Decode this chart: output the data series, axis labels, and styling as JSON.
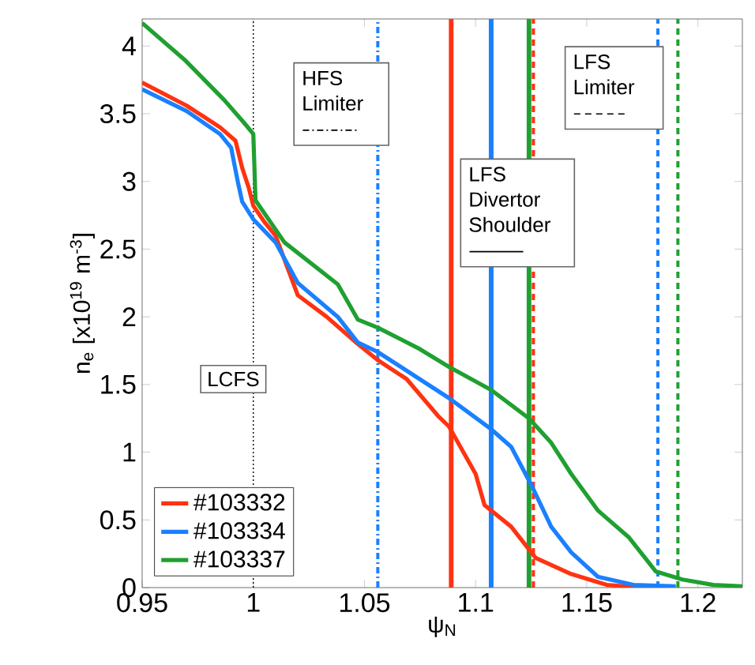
{
  "chart_data": {
    "type": "line",
    "xlabel": "ψ$_{N}$",
    "ylabel": "n$_{e}$ [x10$^{19}$ m$^{-3}$]",
    "xlim": [
      0.95,
      1.22
    ],
    "ylim": [
      0,
      4.2
    ],
    "xticks": [
      0.95,
      1,
      1.05,
      1.1,
      1.15,
      1.2
    ],
    "yticks": [
      0,
      0.5,
      1,
      1.5,
      2,
      2.5,
      3,
      3.5,
      4
    ],
    "legend": "bottom left",
    "series": [
      {
        "name": "#103332",
        "color": "#ff3311",
        "x": [
          0.95,
          0.97,
          0.985,
          0.992,
          0.995,
          0.998,
          1.0,
          1.005,
          1.01,
          1.02,
          1.033,
          1.047,
          1.056,
          1.069,
          1.083,
          1.088,
          1.1,
          1.104,
          1.116,
          1.127,
          1.143,
          1.159,
          1.175,
          1.19
        ],
        "values": [
          3.73,
          3.56,
          3.4,
          3.3,
          3.1,
          2.95,
          2.82,
          2.7,
          2.6,
          2.16,
          2.0,
          1.8,
          1.68,
          1.54,
          1.27,
          1.19,
          0.84,
          0.61,
          0.45,
          0.22,
          0.1,
          0.02,
          0.0,
          0.0
        ]
      },
      {
        "name": "#103334",
        "color": "#1a80ff",
        "x": [
          0.95,
          0.97,
          0.985,
          0.99,
          0.993,
          0.995,
          1.0,
          1.01,
          1.02,
          1.038,
          1.047,
          1.056,
          1.088,
          1.107,
          1.116,
          1.125,
          1.134,
          1.143,
          1.155,
          1.171,
          1.19
        ],
        "values": [
          3.68,
          3.52,
          3.35,
          3.25,
          3.0,
          2.85,
          2.72,
          2.55,
          2.25,
          2.0,
          1.81,
          1.74,
          1.4,
          1.17,
          1.04,
          0.76,
          0.45,
          0.26,
          0.08,
          0.02,
          0.01
        ]
      },
      {
        "name": "#103337",
        "color": "#1fa030",
        "x": [
          0.95,
          0.969,
          0.987,
          0.996,
          1.0,
          1.001,
          1.014,
          1.038,
          1.047,
          1.056,
          1.074,
          1.088,
          1.107,
          1.124,
          1.134,
          1.143,
          1.155,
          1.169,
          1.181,
          1.193,
          1.207,
          1.22
        ],
        "values": [
          4.17,
          3.9,
          3.6,
          3.43,
          3.35,
          2.86,
          2.55,
          2.24,
          1.98,
          1.92,
          1.77,
          1.63,
          1.46,
          1.25,
          1.07,
          0.84,
          0.57,
          0.37,
          0.12,
          0.06,
          0.02,
          0.01
        ]
      }
    ],
    "ref_lines": [
      {
        "axis": "x",
        "value": 1,
        "label": "LCFS",
        "color": "#000000",
        "line_style": "dotted"
      },
      {
        "axis": "x",
        "value": 1.056,
        "color": "#1a80ff",
        "line_style": "dashdot"
      },
      {
        "axis": "x",
        "value": 1.089,
        "color": "#ff3311",
        "line_style": "solid"
      },
      {
        "axis": "x",
        "value": 1.107,
        "color": "#1a80ff",
        "line_style": "solid"
      },
      {
        "axis": "x",
        "value": 1.124,
        "color": "#1fa030",
        "line_style": "solid"
      },
      {
        "axis": "x",
        "value": 1.126,
        "color": "#ff3311",
        "line_style": "dashed"
      },
      {
        "axis": "x",
        "value": 1.182,
        "color": "#1a80ff",
        "line_style": "dashed"
      },
      {
        "axis": "x",
        "value": 1.191,
        "color": "#1fa030",
        "line_style": "dashed"
      }
    ],
    "annotations": [
      "HFS Limiter",
      "LFS Divertor Shoulder",
      "LFS Limiter"
    ]
  }
}
